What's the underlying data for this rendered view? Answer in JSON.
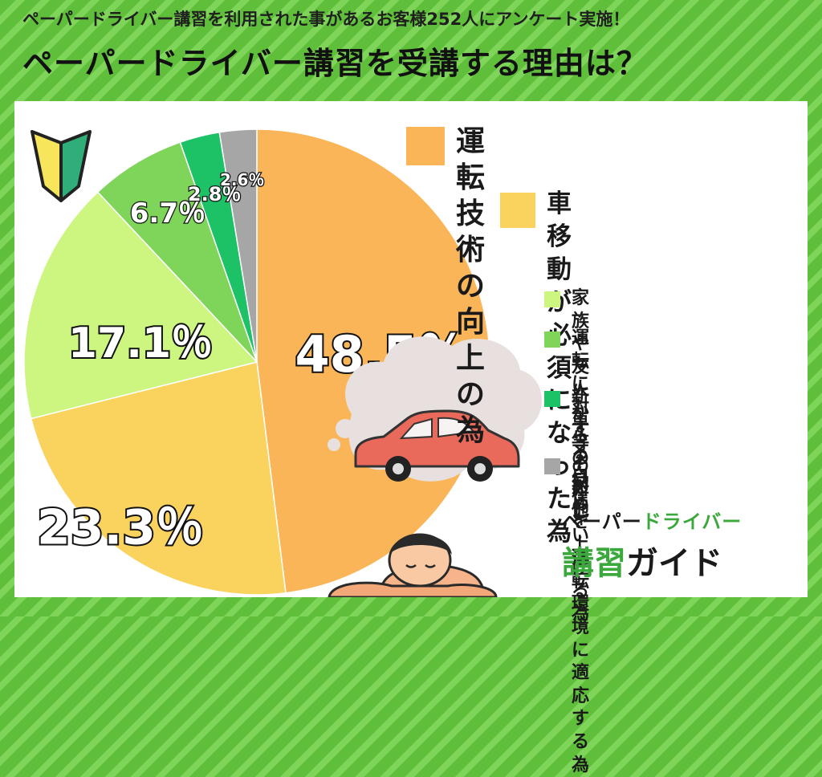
{
  "header": {
    "subtitle": "ペーパードライバー講習を利用された事があるお客様252人にアンケート実施！",
    "title": "ペーパードライバー講習を受講する理由は？"
  },
  "chart_data": {
    "type": "pie",
    "start_angle": "12 o'clock, clockwise",
    "slices": [
      {
        "label": "運転技術の向上の為",
        "value": 48.5,
        "display": "48.5％",
        "color": "#f9b557"
      },
      {
        "label": "車移動が必須になった為",
        "value": 23.3,
        "display": "23.3％",
        "color": "#fad35f"
      },
      {
        "label": "家族や友人からの勧め",
        "value": 17.1,
        "display": "17.1％",
        "color": "#ccf680"
      },
      {
        "label": "運転に対する自信を上げる為",
        "value": 6.7,
        "display": "6.7％",
        "color": "#7fd45a"
      },
      {
        "label": "新車等の新しい運転環境に適応する為",
        "value": 2.8,
        "display": "2.8％",
        "color": "#1ec266"
      },
      {
        "label": "その他",
        "value": 2.6,
        "display": "2.6％",
        "color": "#a6a6a6"
      }
    ]
  },
  "legend": {
    "items": [
      {
        "lines": [
          "運転技術の向上の為"
        ],
        "color": "#f9b557"
      },
      {
        "lines": [
          "車移動が必須に",
          "なった為"
        ],
        "color": "#fad35f"
      },
      {
        "lines": [
          "家族や友人からの勧め"
        ],
        "color": "#ccf680"
      },
      {
        "lines": [
          "運転に対する自信を",
          "上げる為"
        ],
        "color": "#7fd45a"
      },
      {
        "lines": [
          "新車等の新しい運転",
          "環境に適応する為"
        ],
        "color": "#1ec266"
      },
      {
        "lines": [
          "その他"
        ],
        "color": "#a6a6a6"
      }
    ]
  },
  "logo": {
    "top_black": "ペーパー",
    "top_green": "ドライバー",
    "bottom_black": "講習",
    "bottom_green": "ガイド"
  },
  "colors": {
    "background_stripe": "#5fbf3a",
    "panel": "#ffffff",
    "car": "#e96a5a",
    "thought_bubble": "#e8e0de"
  },
  "icons": [
    "beginner-driver-mark-icon",
    "car-icon",
    "thought-bubble-icon",
    "sleeping-person-icon"
  ]
}
